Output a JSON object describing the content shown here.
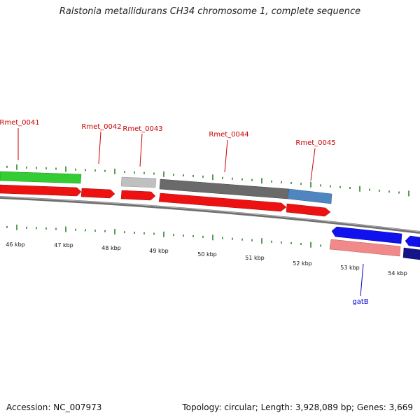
{
  "title": "Ralstonia metallidurans CH34 chromosome 1, complete sequence",
  "footer": {
    "accession": "Accession: NC_007973",
    "topology": "Topology: circular; Length: 3,928,089 bp; Genes: 3,669"
  },
  "kbp_labels": [
    "46 kbp",
    "47 kbp",
    "48 kbp",
    "49 kbp",
    "50 kbp",
    "51 kbp",
    "52 kbp",
    "53 kbp",
    "54 kbp"
  ],
  "gene_labels": [
    {
      "name": "Rmet_0041",
      "strand": "forward"
    },
    {
      "name": "Rmet_0042",
      "strand": "forward"
    },
    {
      "name": "Rmet_0043",
      "strand": "forward"
    },
    {
      "name": "Rmet_0044",
      "strand": "forward"
    },
    {
      "name": "Rmet_0045",
      "strand": "forward"
    },
    {
      "name": "gatB",
      "strand": "reverse"
    }
  ],
  "colors": {
    "forward_cds": "#ee1111",
    "reverse_cds": "#1111ee",
    "forward_rna": "#33cc33",
    "backbone": "#888888",
    "ticks": "#1f7a1f",
    "forward_label": "#cc0000",
    "reverse_label": "#0000cc"
  }
}
